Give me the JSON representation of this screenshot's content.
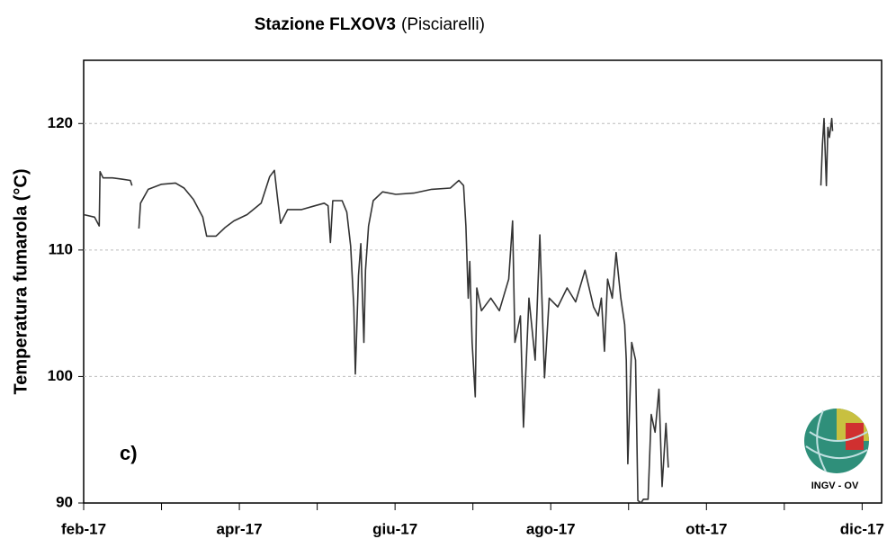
{
  "chart_data": {
    "type": "line",
    "title": "Stazione FLXOV3",
    "subtitle": "(Pisciarelli)",
    "y_label": "Temperatura fumarola  (°C)",
    "annotation": "c)",
    "logo_text": "INGV - OV",
    "color": "#333333",
    "x": [
      0,
      0.14,
      0.2,
      0.21,
      0.25,
      0.37,
      0.49,
      0.6,
      0.62,
      0.66,
      0.71,
      0.73,
      0.83,
      1.0,
      1.18,
      1.29,
      1.41,
      1.53,
      1.58,
      1.7,
      1.82,
      1.93,
      2.1,
      2.28,
      2.39,
      2.45,
      2.49,
      2.53,
      2.62,
      2.8,
      2.97,
      3.09,
      3.14,
      3.17,
      3.2,
      3.32,
      3.38,
      3.43,
      3.47,
      3.49,
      3.53,
      3.56,
      3.6,
      3.62,
      3.66,
      3.72,
      3.84,
      4.01,
      4.24,
      4.47,
      4.71,
      4.82,
      4.88,
      4.91,
      4.94,
      4.96,
      4.99,
      5.03,
      5.05,
      5.11,
      5.23,
      5.34,
      5.46,
      5.51,
      5.54,
      5.61,
      5.65,
      5.72,
      5.8,
      5.86,
      5.92,
      5.98,
      6.09,
      6.21,
      6.32,
      6.44,
      6.55,
      6.61,
      6.65,
      6.69,
      6.73,
      6.79,
      6.84,
      6.9,
      6.95,
      6.97,
      6.99,
      7.04,
      7.09,
      7.12,
      7.16,
      7.19,
      7.25,
      7.29,
      7.34,
      7.39,
      7.43,
      7.48,
      7.51,
      8.0,
      9.47,
      9.49,
      9.51,
      9.54,
      9.56,
      9.58,
      9.61,
      9.62
    ],
    "values": [
      112.8,
      112.6,
      111.9,
      116.2,
      115.7,
      115.7,
      115.6,
      115.5,
      115.1,
      null,
      111.7,
      113.7,
      114.8,
      115.2,
      115.3,
      114.9,
      114.0,
      112.6,
      111.1,
      111.1,
      111.8,
      112.3,
      112.8,
      113.7,
      115.8,
      116.3,
      114.1,
      112.1,
      113.2,
      113.2,
      113.5,
      113.7,
      113.5,
      110.6,
      113.9,
      113.9,
      113.0,
      110.3,
      105.5,
      100.2,
      108.0,
      110.5,
      102.7,
      108.4,
      111.9,
      113.9,
      114.6,
      114.4,
      114.5,
      114.8,
      114.9,
      115.5,
      115.1,
      111.9,
      106.2,
      109.1,
      102.7,
      98.4,
      107.0,
      105.2,
      106.2,
      105.2,
      107.7,
      112.3,
      102.7,
      104.8,
      96.0,
      106.2,
      101.3,
      111.2,
      99.9,
      106.2,
      105.5,
      107.0,
      105.9,
      108.4,
      105.5,
      104.8,
      106.2,
      102.0,
      107.7,
      106.2,
      109.8,
      106.2,
      104.1,
      101.3,
      93.1,
      102.7,
      101.3,
      90.2,
      90.0,
      90.3,
      90.3,
      97.0,
      95.6,
      99.0,
      91.3,
      96.3,
      92.8,
      null,
      115.1,
      118.3,
      120.4,
      115.1,
      119.7,
      118.9,
      120.4,
      119.4
    ],
    "xlim": [
      0,
      10.25
    ],
    "xticks": [
      {
        "value": 0,
        "label": "feb-17"
      },
      {
        "value": 2,
        "label": "apr-17"
      },
      {
        "value": 4,
        "label": "giu-17"
      },
      {
        "value": 6,
        "label": "ago-17"
      },
      {
        "value": 8,
        "label": "ott-17"
      },
      {
        "value": 10,
        "label": "dic-17"
      }
    ],
    "ylim": [
      90,
      125
    ],
    "yticks": [
      90,
      100,
      110,
      120
    ],
    "grid": true
  }
}
